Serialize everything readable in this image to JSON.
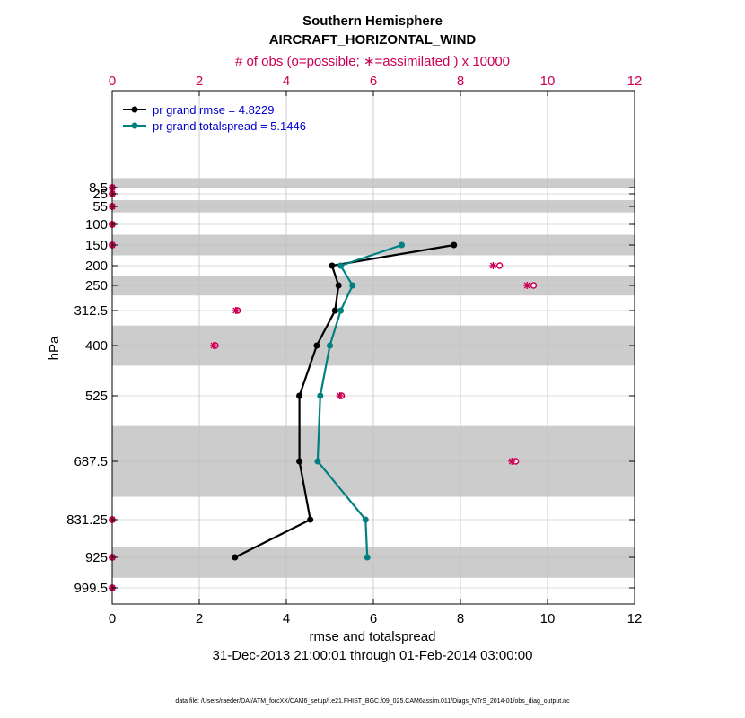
{
  "chart_data": {
    "type": "line",
    "title": "Southern Hemisphere",
    "subtitle": "AIRCRAFT_HORIZONTAL_WIND",
    "top_axis_label": "# of obs (o=possible; ∗=assimilated ) x 10000",
    "xlabel": "rmse and totalspread",
    "ylabel": "hPa",
    "date_range": "31-Dec-2013 21:00:01 through 01-Feb-2014 03:00:00",
    "footnote": "data file: /Users/raeder/DAI/ATM_forcXX/CAM6_setup/f.e21.FHIST_BGC.f09_025.CAM6assim.011/Diags_NTrS_2014-01/obs_diag_output.nc",
    "xlim": [
      0,
      12
    ],
    "x_ticks": [
      0,
      2,
      4,
      6,
      8,
      10,
      12
    ],
    "top_xlim": [
      0,
      12
    ],
    "top_x_ticks": [
      0,
      2,
      4,
      6,
      8,
      10,
      12
    ],
    "y_reversed": true,
    "y_ticks": [
      "8.5",
      "25",
      "55",
      "100",
      "150",
      "200",
      "250",
      "312.5",
      "400",
      "525",
      "687.5",
      "831.25",
      "925",
      "999.5"
    ],
    "pressure_levels": [
      8.5,
      25,
      55,
      100,
      150,
      200,
      250,
      312.5,
      400,
      525,
      687.5,
      831.25,
      925,
      999.5
    ],
    "shaded_bands": [
      [
        1,
        10
      ],
      [
        40,
        70
      ],
      [
        125,
        175
      ],
      [
        225,
        275
      ],
      [
        350,
        450
      ],
      [
        600,
        775
      ],
      [
        900,
        975
      ]
    ],
    "legend_position": "top-left",
    "legend": [
      "pr grand rmse = 4.8229",
      "pr grand totalspread = 5.1446"
    ],
    "colors": {
      "rmse": "#000000",
      "totalspread": "#008080",
      "obs": "#cc0055",
      "band": "#cccccc",
      "grid": "#c8bdc4",
      "legend_text": "#0000cc"
    },
    "series": [
      {
        "name": "rmse",
        "points": [
          {
            "level": 150,
            "value": 7.85
          },
          {
            "level": 200,
            "value": 5.05
          },
          {
            "level": 250,
            "value": 5.2
          },
          {
            "level": 312.5,
            "value": 5.12
          },
          {
            "level": 400,
            "value": 4.7
          },
          {
            "level": 525,
            "value": 4.3
          },
          {
            "level": 687.5,
            "value": 4.3
          },
          {
            "level": 831.25,
            "value": 4.55
          },
          {
            "level": 925,
            "value": 2.82
          }
        ]
      },
      {
        "name": "totalspread",
        "points": [
          {
            "level": 150,
            "value": 6.65
          },
          {
            "level": 200,
            "value": 5.25
          },
          {
            "level": 250,
            "value": 5.52
          },
          {
            "level": 312.5,
            "value": 5.25
          },
          {
            "level": 400,
            "value": 5.0
          },
          {
            "level": 525,
            "value": 4.78
          },
          {
            "level": 687.5,
            "value": 4.72
          },
          {
            "level": 831.25,
            "value": 5.82
          },
          {
            "level": 925,
            "value": 5.86
          }
        ]
      }
    ],
    "obs_counts": [
      {
        "level": 8.5,
        "possible": 0,
        "assimilated": 0
      },
      {
        "level": 25,
        "possible": 0,
        "assimilated": 0
      },
      {
        "level": 55,
        "possible": 0,
        "assimilated": 0
      },
      {
        "level": 100,
        "possible": 0,
        "assimilated": 0
      },
      {
        "level": 150,
        "possible": 0,
        "assimilated": 0
      },
      {
        "level": 200,
        "possible": 8.9,
        "assimilated": 8.75
      },
      {
        "level": 250,
        "possible": 9.68,
        "assimilated": 9.53
      },
      {
        "level": 312.5,
        "possible": 2.88,
        "assimilated": 2.84
      },
      {
        "level": 400,
        "possible": 2.37,
        "assimilated": 2.33
      },
      {
        "level": 525,
        "possible": 5.27,
        "assimilated": 5.23
      },
      {
        "level": 687.5,
        "possible": 9.27,
        "assimilated": 9.18
      },
      {
        "level": 831.25,
        "possible": 0,
        "assimilated": 0
      },
      {
        "level": 925,
        "possible": 0,
        "assimilated": 0
      },
      {
        "level": 999.5,
        "possible": 0,
        "assimilated": 0
      }
    ]
  }
}
